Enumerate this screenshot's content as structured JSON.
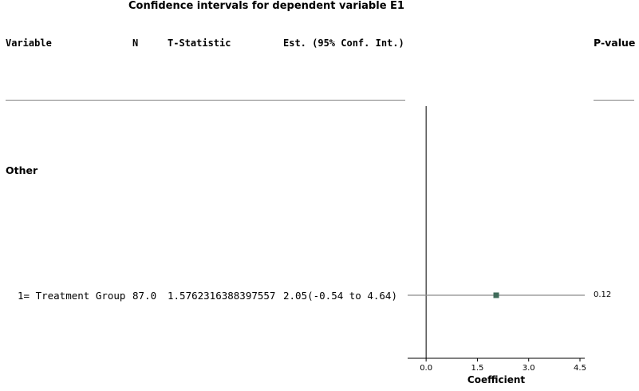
{
  "title": "Confidence intervals for dependent variable E1",
  "columns": {
    "variable": "Variable",
    "n": "N",
    "t_statistic": "T-Statistic",
    "estimate": "Est. (95% Conf. Int.)",
    "p_value": "P-value"
  },
  "group_label": "Other",
  "rows": [
    {
      "variable": "1= Treatment Group",
      "n": "87.0",
      "t_statistic": "1.5762316388397557",
      "estimate": "2.05(-0.54 to 4.64)",
      "p_value": "0.12"
    }
  ],
  "chart_data": {
    "type": "scatter",
    "title": "Confidence intervals for dependent variable E1",
    "xlabel": "Coefficient",
    "ylabel": "",
    "xlim": [
      -0.54,
      4.64
    ],
    "xticks": [
      "0.0",
      "1.5",
      "3.0",
      "4.5"
    ],
    "reference_line_x": 0,
    "points": [
      {
        "label": "1= Treatment Group",
        "estimate": 2.05,
        "ci_low": -0.54,
        "ci_high": 4.64
      }
    ],
    "marker_color": "#3f6b5a",
    "ci_line_color": "#8c8c8c"
  }
}
